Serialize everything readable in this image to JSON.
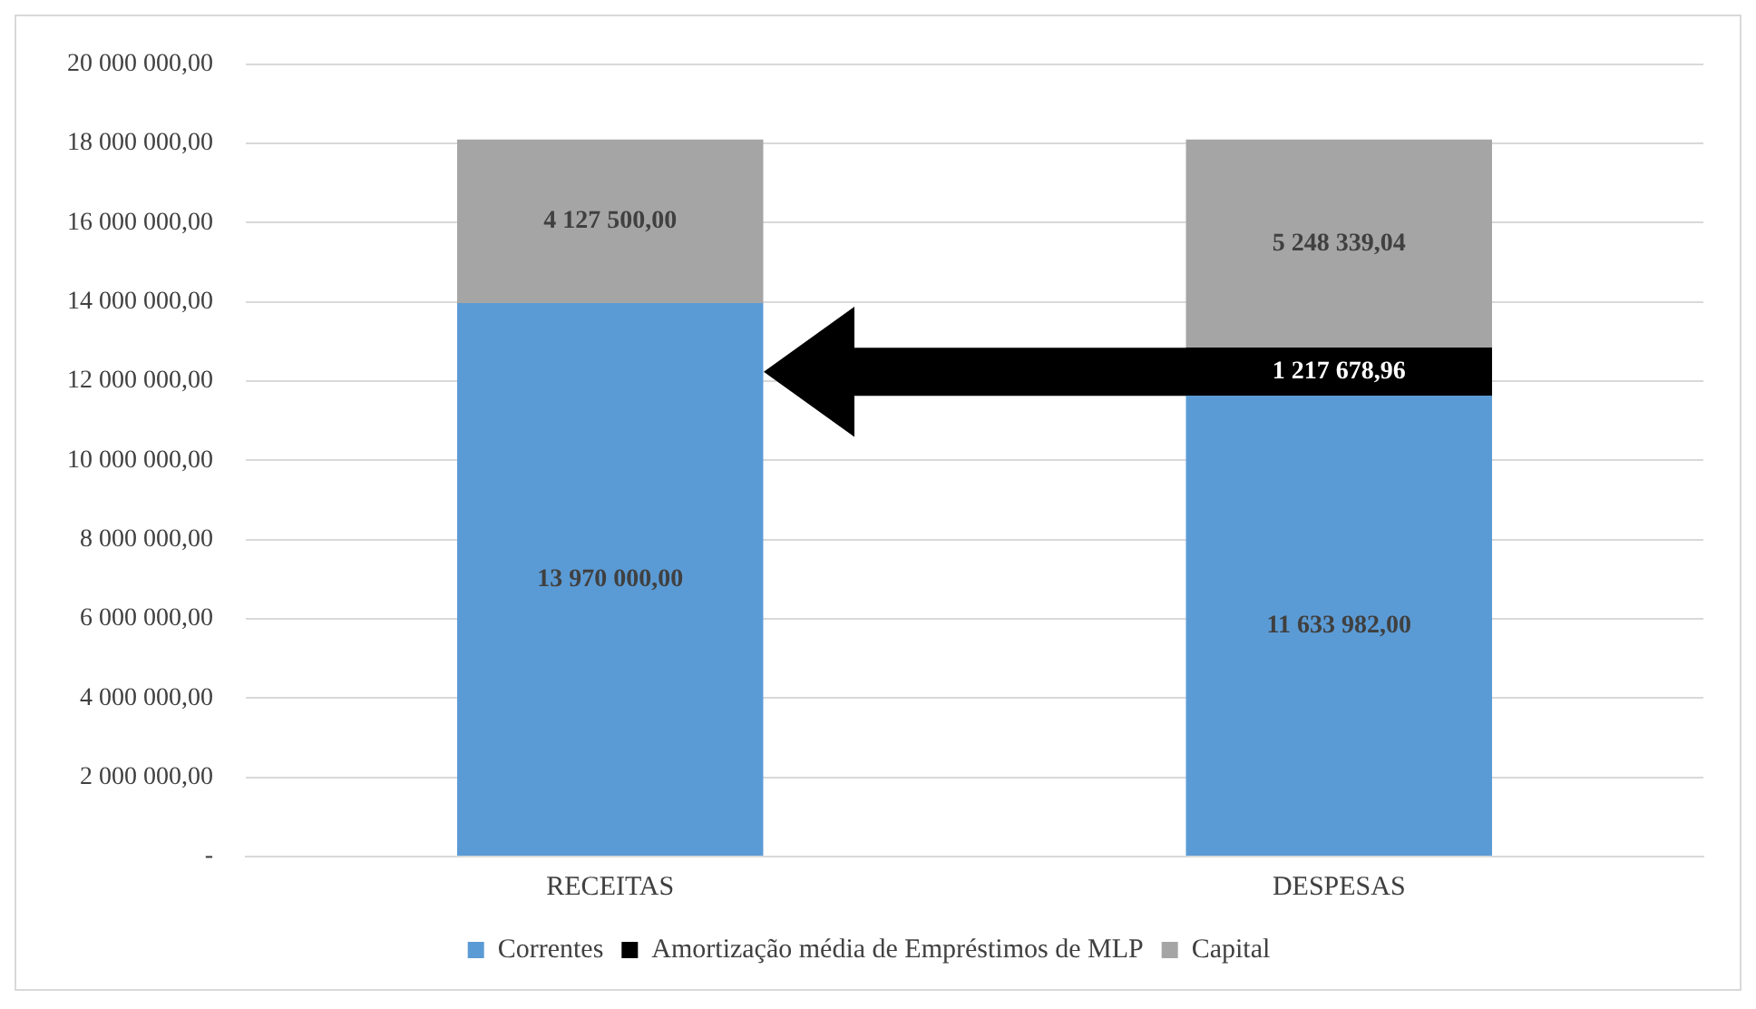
{
  "chart_data": {
    "type": "bar",
    "stacked": true,
    "categories": [
      "RECEITAS",
      "DESPESAS"
    ],
    "series": [
      {
        "name": "Correntes",
        "color": "#5b9bd5",
        "values": [
          13970000,
          11633982
        ],
        "value_labels": [
          "13 970 000,00",
          "11 633 982,00"
        ]
      },
      {
        "name": "Amortização média de Empréstimos de MLP",
        "color": "#000000",
        "values": [
          null,
          1217678.96
        ],
        "value_labels": [
          null,
          "1 217 678,96"
        ]
      },
      {
        "name": "Capital",
        "color": "#a5a5a5",
        "values": [
          4127500,
          5248339.04
        ],
        "value_labels": [
          "4 127 500,00",
          "5 248 339,04"
        ]
      }
    ],
    "ylim": [
      0,
      20000000
    ],
    "yticks": [
      {
        "value": 0,
        "label": "-"
      },
      {
        "value": 2000000,
        "label": "2 000 000,00"
      },
      {
        "value": 4000000,
        "label": "4 000 000,00"
      },
      {
        "value": 6000000,
        "label": "6 000 000,00"
      },
      {
        "value": 8000000,
        "label": "8 000 000,00"
      },
      {
        "value": 10000000,
        "label": "10 000 000,00"
      },
      {
        "value": 12000000,
        "label": "12 000 000,00"
      },
      {
        "value": 14000000,
        "label": "14 000 000,00"
      },
      {
        "value": 16000000,
        "label": "16 000 000,00"
      },
      {
        "value": 18000000,
        "label": "18 000 000,00"
      },
      {
        "value": 20000000,
        "label": "20 000 000,00"
      }
    ],
    "grid": "y",
    "legend": "bottom"
  }
}
